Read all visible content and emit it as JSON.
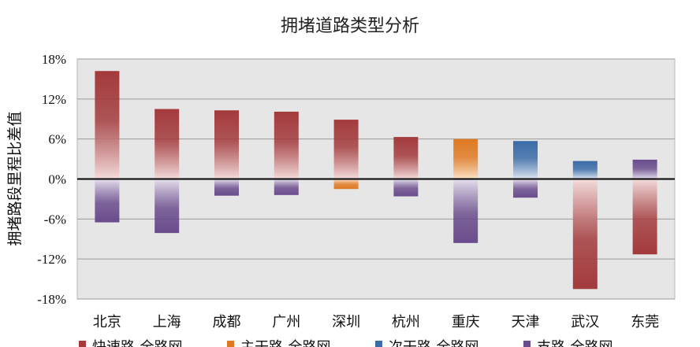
{
  "chart_data": {
    "type": "bar",
    "subtype": "stacked-positive-negative",
    "title": "拥堵道路类型分析",
    "xlabel": "",
    "ylabel": "拥堵路段里程比差值",
    "ylim": [
      -18,
      18
    ],
    "y_ticks": [
      "18%",
      "12%",
      "6%",
      "0%",
      "-6%",
      "-12%",
      "-18%"
    ],
    "y_tick_values": [
      18,
      12,
      6,
      0,
      -6,
      -12,
      -18
    ],
    "grid": true,
    "legend_position": "bottom",
    "categories": [
      "北京",
      "上海",
      "成都",
      "广州",
      "深圳",
      "杭州",
      "重庆",
      "天津",
      "武汉",
      "东莞"
    ],
    "series": [
      {
        "name": "快速路-全路网",
        "color": "#a33a3c",
        "values": [
          16.2,
          10.5,
          10.3,
          10.1,
          8.9,
          6.3,
          0,
          0,
          -16.5,
          -11.3
        ]
      },
      {
        "name": "主干路-全路网",
        "color": "#e07a22",
        "values": [
          0,
          0,
          0,
          0,
          -1.5,
          0,
          6.0,
          0,
          0,
          0
        ]
      },
      {
        "name": "次干路-全路网",
        "color": "#3b6ca8",
        "values": [
          0,
          0,
          0,
          0,
          0,
          0,
          0,
          5.7,
          2.7,
          0
        ]
      },
      {
        "name": "支路-全路网",
        "color": "#6a4c8c",
        "values": [
          -6.5,
          -8.1,
          -2.5,
          -2.4,
          0,
          -2.6,
          -9.6,
          -2.8,
          0,
          2.9
        ]
      }
    ]
  }
}
